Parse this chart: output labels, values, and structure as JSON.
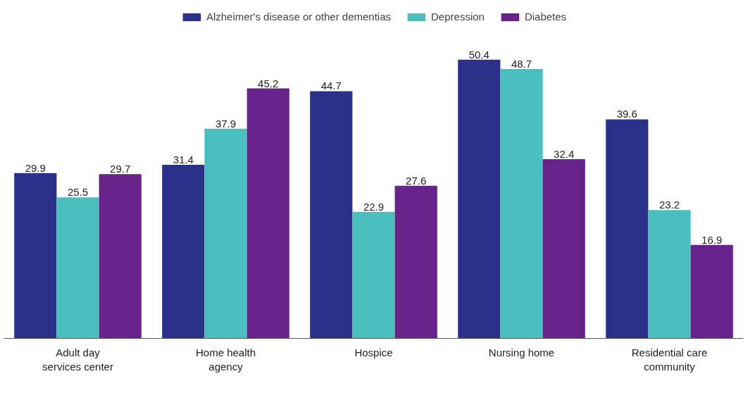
{
  "chart_data": {
    "type": "bar",
    "categories": [
      "Adult day services center",
      "Home health agency",
      "Hospice",
      "Nursing home",
      "Residential care community"
    ],
    "series": [
      {
        "name": "Alzheimer's disease or other dementias",
        "color": "#2b3088",
        "values": [
          29.9,
          31.4,
          44.7,
          50.4,
          39.6
        ]
      },
      {
        "name": "Depression",
        "color": "#4bbfbf",
        "values": [
          25.5,
          37.9,
          22.9,
          48.7,
          23.2
        ]
      },
      {
        "name": "Diabetes",
        "color": "#68238a",
        "values": [
          29.7,
          45.2,
          27.6,
          32.4,
          16.9
        ]
      }
    ],
    "data_labels": true,
    "legend": "top"
  }
}
